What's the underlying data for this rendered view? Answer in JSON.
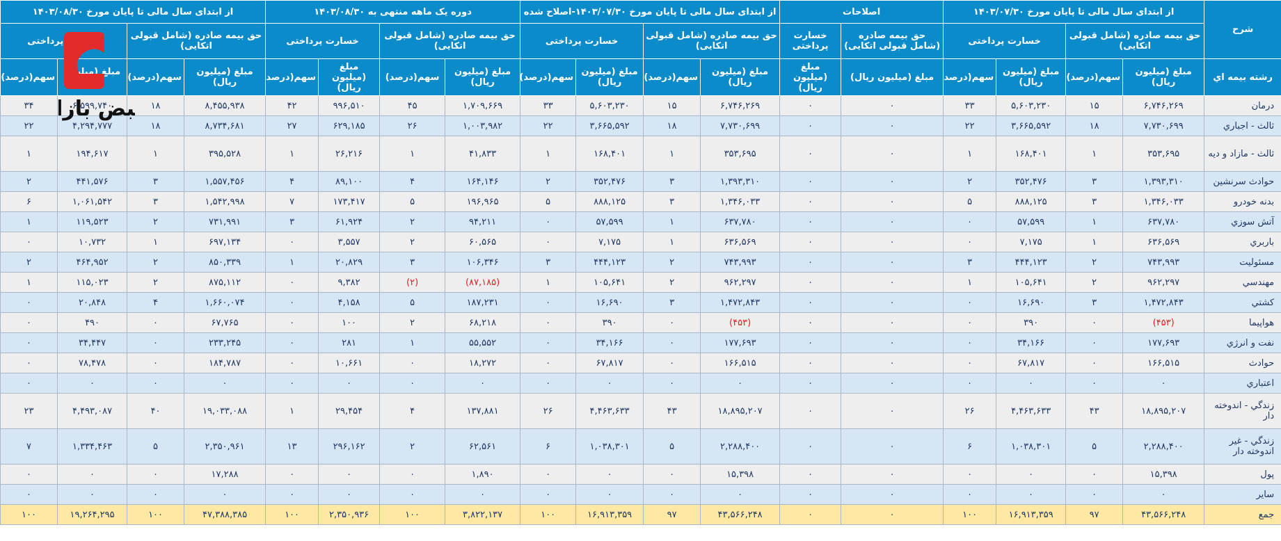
{
  "header": {
    "label_title": "شرح",
    "row_label": "رشته بیمه اي",
    "groups": [
      {
        "title": "از ابتدای سال مالی تا پایان مورخ ۱۴۰۳/۰۷/۳۰",
        "subgroups": [
          {
            "title": "حق بیمه صادره (شامل قبولی اتکایی)",
            "columns": [
              "مبلغ (میلیون ریال)",
              "سهم(درصد)"
            ]
          },
          {
            "title": "خسارت پرداختی",
            "columns": [
              "مبلغ (میلیون ریال)",
              "سهم(درصد)"
            ]
          }
        ]
      },
      {
        "title": "اصلاحات",
        "subgroups": [
          {
            "title": "حق بیمه صادره (شامل قبولی اتکایی)",
            "columns": [
              "مبلغ (میلیون ریال)"
            ]
          },
          {
            "title": "خسارت پرداختی",
            "columns": [
              "مبلغ (میلیون ریال)"
            ]
          }
        ]
      },
      {
        "title": "از ابتدای سال مالی تا پایان مورخ ۱۴۰۳/۰۷/۳۰-اصلاح شده",
        "subgroups": [
          {
            "title": "حق بیمه صادره (شامل قبولی اتکایی)",
            "columns": [
              "مبلغ (میلیون ریال)",
              "سهم(درصد)"
            ]
          },
          {
            "title": "خسارت پرداختی",
            "columns": [
              "مبلغ (میلیون ریال)",
              "سهم(درصد)"
            ]
          }
        ]
      },
      {
        "title": "دوره یک ماهه منتهی به ۱۴۰۳/۰۸/۳۰",
        "subgroups": [
          {
            "title": "حق بیمه صادره (شامل قبولی اتکایی)",
            "columns": [
              "مبلغ (میلیون ریال)",
              "سهم(درصد)"
            ]
          },
          {
            "title": "خسارت پرداختی",
            "columns": [
              "مبلغ (میلیون ریال)",
              "سهم(درصد)"
            ]
          }
        ]
      },
      {
        "title": "از ابتدای سال مالی تا پایان مورخ ۱۴۰۳/۰۸/۳۰",
        "subgroups": [
          {
            "title": "حق بیمه صادره (شامل قبولی اتکایی)",
            "columns": [
              "مبلغ (میلیون ریال)",
              "سهم(درصد)"
            ]
          },
          {
            "title": "خسارت پرداختی",
            "columns": [
              "مبلغ (میلیون ریال)",
              "سهم(درصد)"
            ]
          }
        ]
      }
    ]
  },
  "table": {
    "rows": [
      [
        "درمان",
        "۶,۷۴۶,۲۶۹",
        "۱۵",
        "۵,۶۰۳,۲۳۰",
        "۳۳",
        "۰",
        "۰",
        "۶,۷۴۶,۲۶۹",
        "۱۵",
        "۵,۶۰۳,۲۳۰",
        "۳۳",
        "۱,۷۰۹,۶۶۹",
        "۴۵",
        "۹۹۶,۵۱۰",
        "۴۲",
        "۸,۴۵۵,۹۳۸",
        "۱۸",
        "۶,۵۹۹,۷۴۰",
        "۳۴"
      ],
      [
        "ثالث - اجباري",
        "۷,۷۳۰,۶۹۹",
        "۱۸",
        "۳,۶۶۵,۵۹۲",
        "۲۲",
        "۰",
        "۰",
        "۷,۷۳۰,۶۹۹",
        "۱۸",
        "۳,۶۶۵,۵۹۲",
        "۲۲",
        "۱,۰۰۳,۹۸۲",
        "۲۶",
        "۶۲۹,۱۸۵",
        "۲۷",
        "۸,۷۳۴,۶۸۱",
        "۱۸",
        "۴,۲۹۴,۷۷۷",
        "۲۲"
      ],
      [
        "ثالث - مازاد و دیه",
        "۳۵۳,۶۹۵",
        "۱",
        "۱۶۸,۴۰۱",
        "۱",
        "۰",
        "۰",
        "۳۵۳,۶۹۵",
        "۱",
        "۱۶۸,۴۰۱",
        "۱",
        "۴۱,۸۳۳",
        "۱",
        "۲۶,۲۱۶",
        "۱",
        "۳۹۵,۵۲۸",
        "۱",
        "۱۹۴,۶۱۷",
        "۱"
      ],
      [
        "حوادث سرنشين",
        "۱,۳۹۳,۳۱۰",
        "۳",
        "۳۵۲,۴۷۶",
        "۲",
        "۰",
        "۰",
        "۱,۳۹۳,۳۱۰",
        "۳",
        "۳۵۲,۴۷۶",
        "۲",
        "۱۶۴,۱۴۶",
        "۴",
        "۸۹,۱۰۰",
        "۴",
        "۱,۵۵۷,۴۵۶",
        "۳",
        "۴۴۱,۵۷۶",
        "۲"
      ],
      [
        "بدنه خودرو",
        "۱,۳۴۶,۰۳۳",
        "۳",
        "۸۸۸,۱۲۵",
        "۵",
        "۰",
        "۰",
        "۱,۳۴۶,۰۳۳",
        "۳",
        "۸۸۸,۱۲۵",
        "۵",
        "۱۹۶,۹۶۵",
        "۵",
        "۱۷۳,۴۱۷",
        "۷",
        "۱,۵۴۲,۹۹۸",
        "۳",
        "۱,۰۶۱,۵۴۲",
        "۶"
      ],
      [
        "آتش سوزي",
        "۶۳۷,۷۸۰",
        "۱",
        "۵۷,۵۹۹",
        "۰",
        "۰",
        "۰",
        "۶۳۷,۷۸۰",
        "۱",
        "۵۷,۵۹۹",
        "۰",
        "۹۴,۲۱۱",
        "۲",
        "۶۱,۹۲۴",
        "۳",
        "۷۳۱,۹۹۱",
        "۲",
        "۱۱۹,۵۲۳",
        "۱"
      ],
      [
        "باربري",
        "۶۳۶,۵۶۹",
        "۱",
        "۷,۱۷۵",
        "۰",
        "۰",
        "۰",
        "۶۳۶,۵۶۹",
        "۱",
        "۷,۱۷۵",
        "۰",
        "۶۰,۵۶۵",
        "۲",
        "۳,۵۵۷",
        "۰",
        "۶۹۷,۱۳۴",
        "۱",
        "۱۰,۷۳۲",
        "۰"
      ],
      [
        "مسئوليت",
        "۷۴۳,۹۹۳",
        "۲",
        "۴۴۴,۱۲۳",
        "۳",
        "۰",
        "۰",
        "۷۴۳,۹۹۳",
        "۲",
        "۴۴۴,۱۲۳",
        "۳",
        "۱۰۶,۳۴۶",
        "۳",
        "۲۰,۸۲۹",
        "۱",
        "۸۵۰,۳۳۹",
        "۲",
        "۴۶۴,۹۵۲",
        "۲"
      ],
      [
        "مهندسي",
        "۹۶۲,۲۹۷",
        "۲",
        "۱۰۵,۶۴۱",
        "۱",
        "۰",
        "۰",
        "۹۶۲,۲۹۷",
        "۲",
        "۱۰۵,۶۴۱",
        "۱",
        "(۸۷,۱۸۵)",
        "(۲)",
        "۹,۳۸۲",
        "۰",
        "۸۷۵,۱۱۲",
        "۲",
        "۱۱۵,۰۲۳",
        "۱"
      ],
      [
        "کشتي",
        "۱,۴۷۲,۸۴۳",
        "۳",
        "۱۶,۶۹۰",
        "۰",
        "۰",
        "۰",
        "۱,۴۷۲,۸۴۳",
        "۳",
        "۱۶,۶۹۰",
        "۰",
        "۱۸۷,۲۳۱",
        "۵",
        "۴,۱۵۸",
        "۰",
        "۱,۶۶۰,۰۷۴",
        "۴",
        "۲۰,۸۴۸",
        "۰"
      ],
      [
        "هواپيما",
        "(۴۵۳)",
        "۰",
        "۳۹۰",
        "۰",
        "۰",
        "۰",
        "(۴۵۳)",
        "۰",
        "۳۹۰",
        "۰",
        "۶۸,۲۱۸",
        "۲",
        "۱۰۰",
        "۰",
        "۶۷,۷۶۵",
        "۰",
        "۴۹۰",
        "۰"
      ],
      [
        "نفت و انرژي",
        "۱۷۷,۶۹۳",
        "۰",
        "۳۴,۱۶۶",
        "۰",
        "۰",
        "۰",
        "۱۷۷,۶۹۳",
        "۰",
        "۳۴,۱۶۶",
        "۰",
        "۵۵,۵۵۲",
        "۱",
        "۲۸۱",
        "۰",
        "۲۳۳,۲۴۵",
        "۰",
        "۳۴,۴۴۷",
        "۰"
      ],
      [
        "حوادث",
        "۱۶۶,۵۱۵",
        "۰",
        "۶۷,۸۱۷",
        "۰",
        "۰",
        "۰",
        "۱۶۶,۵۱۵",
        "۰",
        "۶۷,۸۱۷",
        "۰",
        "۱۸,۲۷۲",
        "۰",
        "۱۰,۶۶۱",
        "۰",
        "۱۸۴,۷۸۷",
        "۰",
        "۷۸,۴۷۸",
        "۰"
      ],
      [
        "اعتباري",
        "۰",
        "۰",
        "۰",
        "۰",
        "۰",
        "۰",
        "۰",
        "۰",
        "۰",
        "۰",
        "۰",
        "۰",
        "۰",
        "۰",
        "۰",
        "۰",
        "۰",
        "۰"
      ],
      [
        "زندگي - اندوخته دار",
        "۱۸,۸۹۵,۲۰۷",
        "۴۳",
        "۴,۴۶۳,۶۳۳",
        "۲۶",
        "۰",
        "۰",
        "۱۸,۸۹۵,۲۰۷",
        "۴۳",
        "۴,۴۶۳,۶۳۳",
        "۲۶",
        "۱۳۷,۸۸۱",
        "۴",
        "۲۹,۴۵۴",
        "۱",
        "۱۹,۰۳۳,۰۸۸",
        "۴۰",
        "۴,۴۹۳,۰۸۷",
        "۲۳"
      ],
      [
        "زندگي - غیر اندوخته دار",
        "۲,۲۸۸,۴۰۰",
        "۵",
        "۱,۰۳۸,۳۰۱",
        "۶",
        "۰",
        "۰",
        "۲,۲۸۸,۴۰۰",
        "۵",
        "۱,۰۳۸,۳۰۱",
        "۶",
        "۶۲,۵۶۱",
        "۲",
        "۲۹۶,۱۶۲",
        "۱۳",
        "۲,۳۵۰,۹۶۱",
        "۵",
        "۱,۳۳۴,۴۶۳",
        "۷"
      ],
      [
        "پول",
        "۱۵,۳۹۸",
        "۰",
        "۰",
        "۰",
        "۰",
        "۰",
        "۱۵,۳۹۸",
        "۰",
        "۰",
        "۰",
        "۱,۸۹۰",
        "۰",
        "۰",
        "۰",
        "۱۷,۲۸۸",
        "۰",
        "۰",
        "۰"
      ],
      [
        "ساير",
        "۰",
        "۰",
        "۰",
        "۰",
        "۰",
        "۰",
        "۰",
        "۰",
        "۰",
        "۰",
        "۰",
        "۰",
        "۰",
        "۰",
        "۰",
        "۰",
        "۰",
        "۰"
      ],
      [
        "جمع",
        "۴۳,۵۶۶,۲۴۸",
        "۹۷",
        "۱۶,۹۱۳,۳۵۹",
        "۱۰۰",
        "۰",
        "۰",
        "۴۳,۵۶۶,۲۴۸",
        "۹۷",
        "۱۶,۹۱۳,۳۵۹",
        "۱۰۰",
        "۳,۸۲۲,۱۳۷",
        "۱۰۰",
        "۲,۳۵۰,۹۳۶",
        "۱۰۰",
        "۴۷,۳۸۸,۳۸۵",
        "۱۰۰",
        "۱۹,۲۶۴,۲۹۵",
        "۱۰۰"
      ]
    ]
  },
  "watermark": "نبض بازار"
}
